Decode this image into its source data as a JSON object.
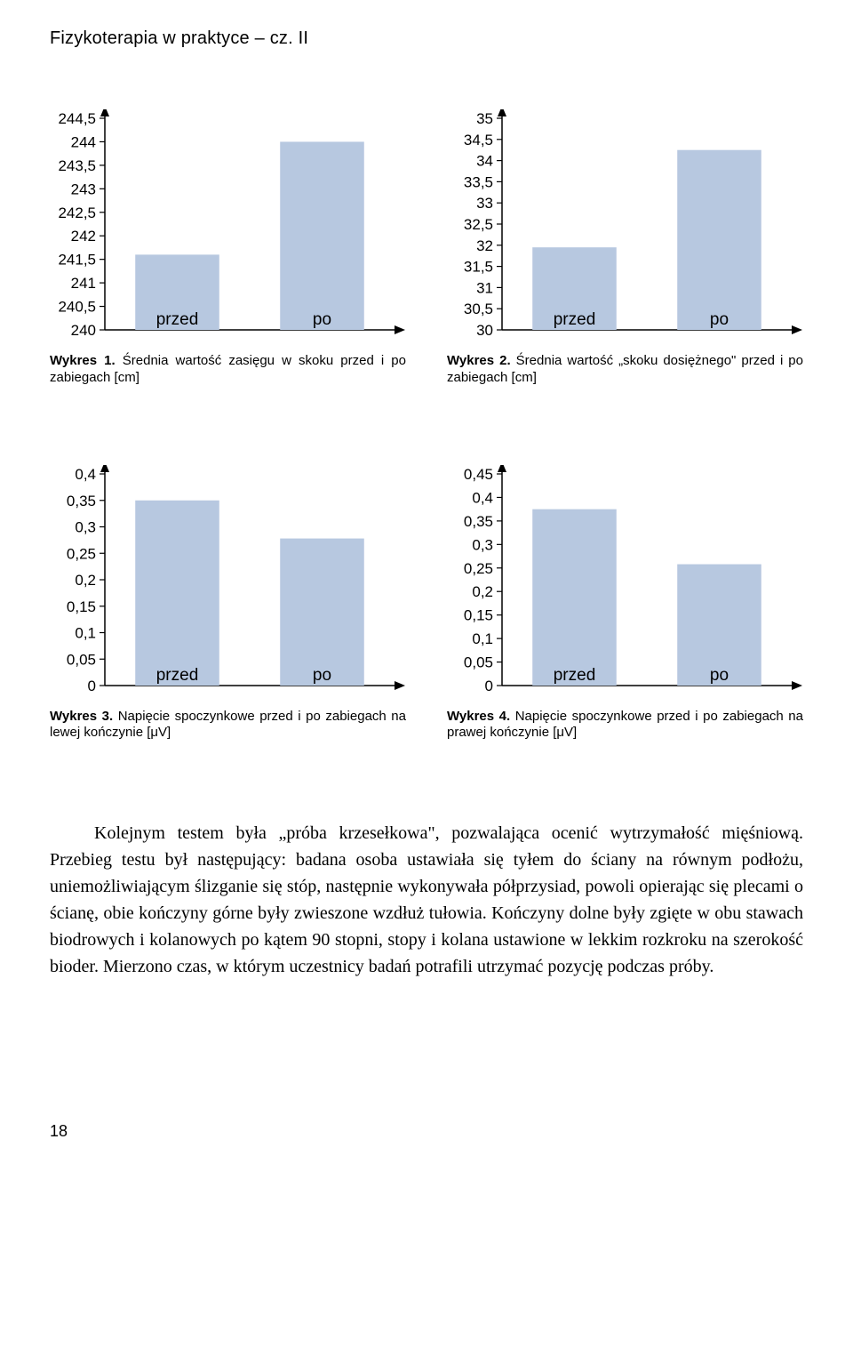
{
  "header": "Fizykoterapia w praktyce – cz. II",
  "charts": {
    "c1": {
      "yticks": [
        "240",
        "240,5",
        "241",
        "241,5",
        "242",
        "242,5",
        "243",
        "243,5",
        "244",
        "244,5"
      ],
      "ymin": 240,
      "ymax": 244.5,
      "ystep": 0.5,
      "bars": [
        {
          "label": "przed",
          "value": 241.6
        },
        {
          "label": "po",
          "value": 244.0
        }
      ],
      "bar_color": "#b7c8e0",
      "axis_color": "#000000",
      "caption_lead": "Wykres 1.",
      "caption": " Średnia wartość zasięgu w skoku przed i po zabiegach [cm]"
    },
    "c2": {
      "yticks": [
        "30",
        "30,5",
        "31",
        "31,5",
        "32",
        "32,5",
        "33",
        "33,5",
        "34",
        "34,5",
        "35"
      ],
      "ymin": 30,
      "ymax": 35,
      "ystep": 0.5,
      "bars": [
        {
          "label": "przed",
          "value": 31.95
        },
        {
          "label": "po",
          "value": 34.25
        }
      ],
      "bar_color": "#b7c8e0",
      "axis_color": "#000000",
      "caption_lead": "Wykres 2.",
      "caption": " Średnia wartość „skoku dosiężnego\" przed i po zabiegach [cm]"
    },
    "c3": {
      "yticks": [
        "0",
        "0,05",
        "0,1",
        "0,15",
        "0,2",
        "0,25",
        "0,3",
        "0,35",
        "0,4"
      ],
      "ymin": 0,
      "ymax": 0.4,
      "ystep": 0.05,
      "bars": [
        {
          "label": "przed",
          "value": 0.35
        },
        {
          "label": "po",
          "value": 0.278
        }
      ],
      "bar_color": "#b7c8e0",
      "axis_color": "#000000",
      "caption_lead": "Wykres 3.",
      "caption": " Napięcie spoczynkowe przed i po zabiegach na lewej kończynie [μV]"
    },
    "c4": {
      "yticks": [
        "0",
        "0,05",
        "0,1",
        "0,15",
        "0,2",
        "0,25",
        "0,3",
        "0,35",
        "0,4",
        "0,45"
      ],
      "ymin": 0,
      "ymax": 0.45,
      "ystep": 0.05,
      "bars": [
        {
          "label": "przed",
          "value": 0.375
        },
        {
          "label": "po",
          "value": 0.258
        }
      ],
      "bar_color": "#b7c8e0",
      "axis_color": "#000000",
      "caption_lead": "Wykres 4.",
      "caption": " Napięcie spoczynkowe przed i po zabiegach na prawej kończynie [μV]"
    }
  },
  "paragraph": "Kolejnym testem była „próba krzesełkowa\", pozwalająca ocenić wytrzymałość mięśniową. Przebieg testu był następujący: badana osoba ustawiała się tyłem do ściany na równym podłożu, uniemożliwiającym ślizganie się stóp, następnie wykonywała półprzysiad, powoli opierając się plecami o ścianę, obie kończyny górne były zwieszone wzdłuż tułowia. Kończyny dolne były zgięte w obu stawach biodrowych i kolanowych po kątem 90 stopni, stopy i kolana ustawione w lekkim rozkroku na szerokość bioder. Mierzono czas, w którym uczestnicy badań potrafili utrzymać pozycję podczas próby.",
  "page_number": "18"
}
